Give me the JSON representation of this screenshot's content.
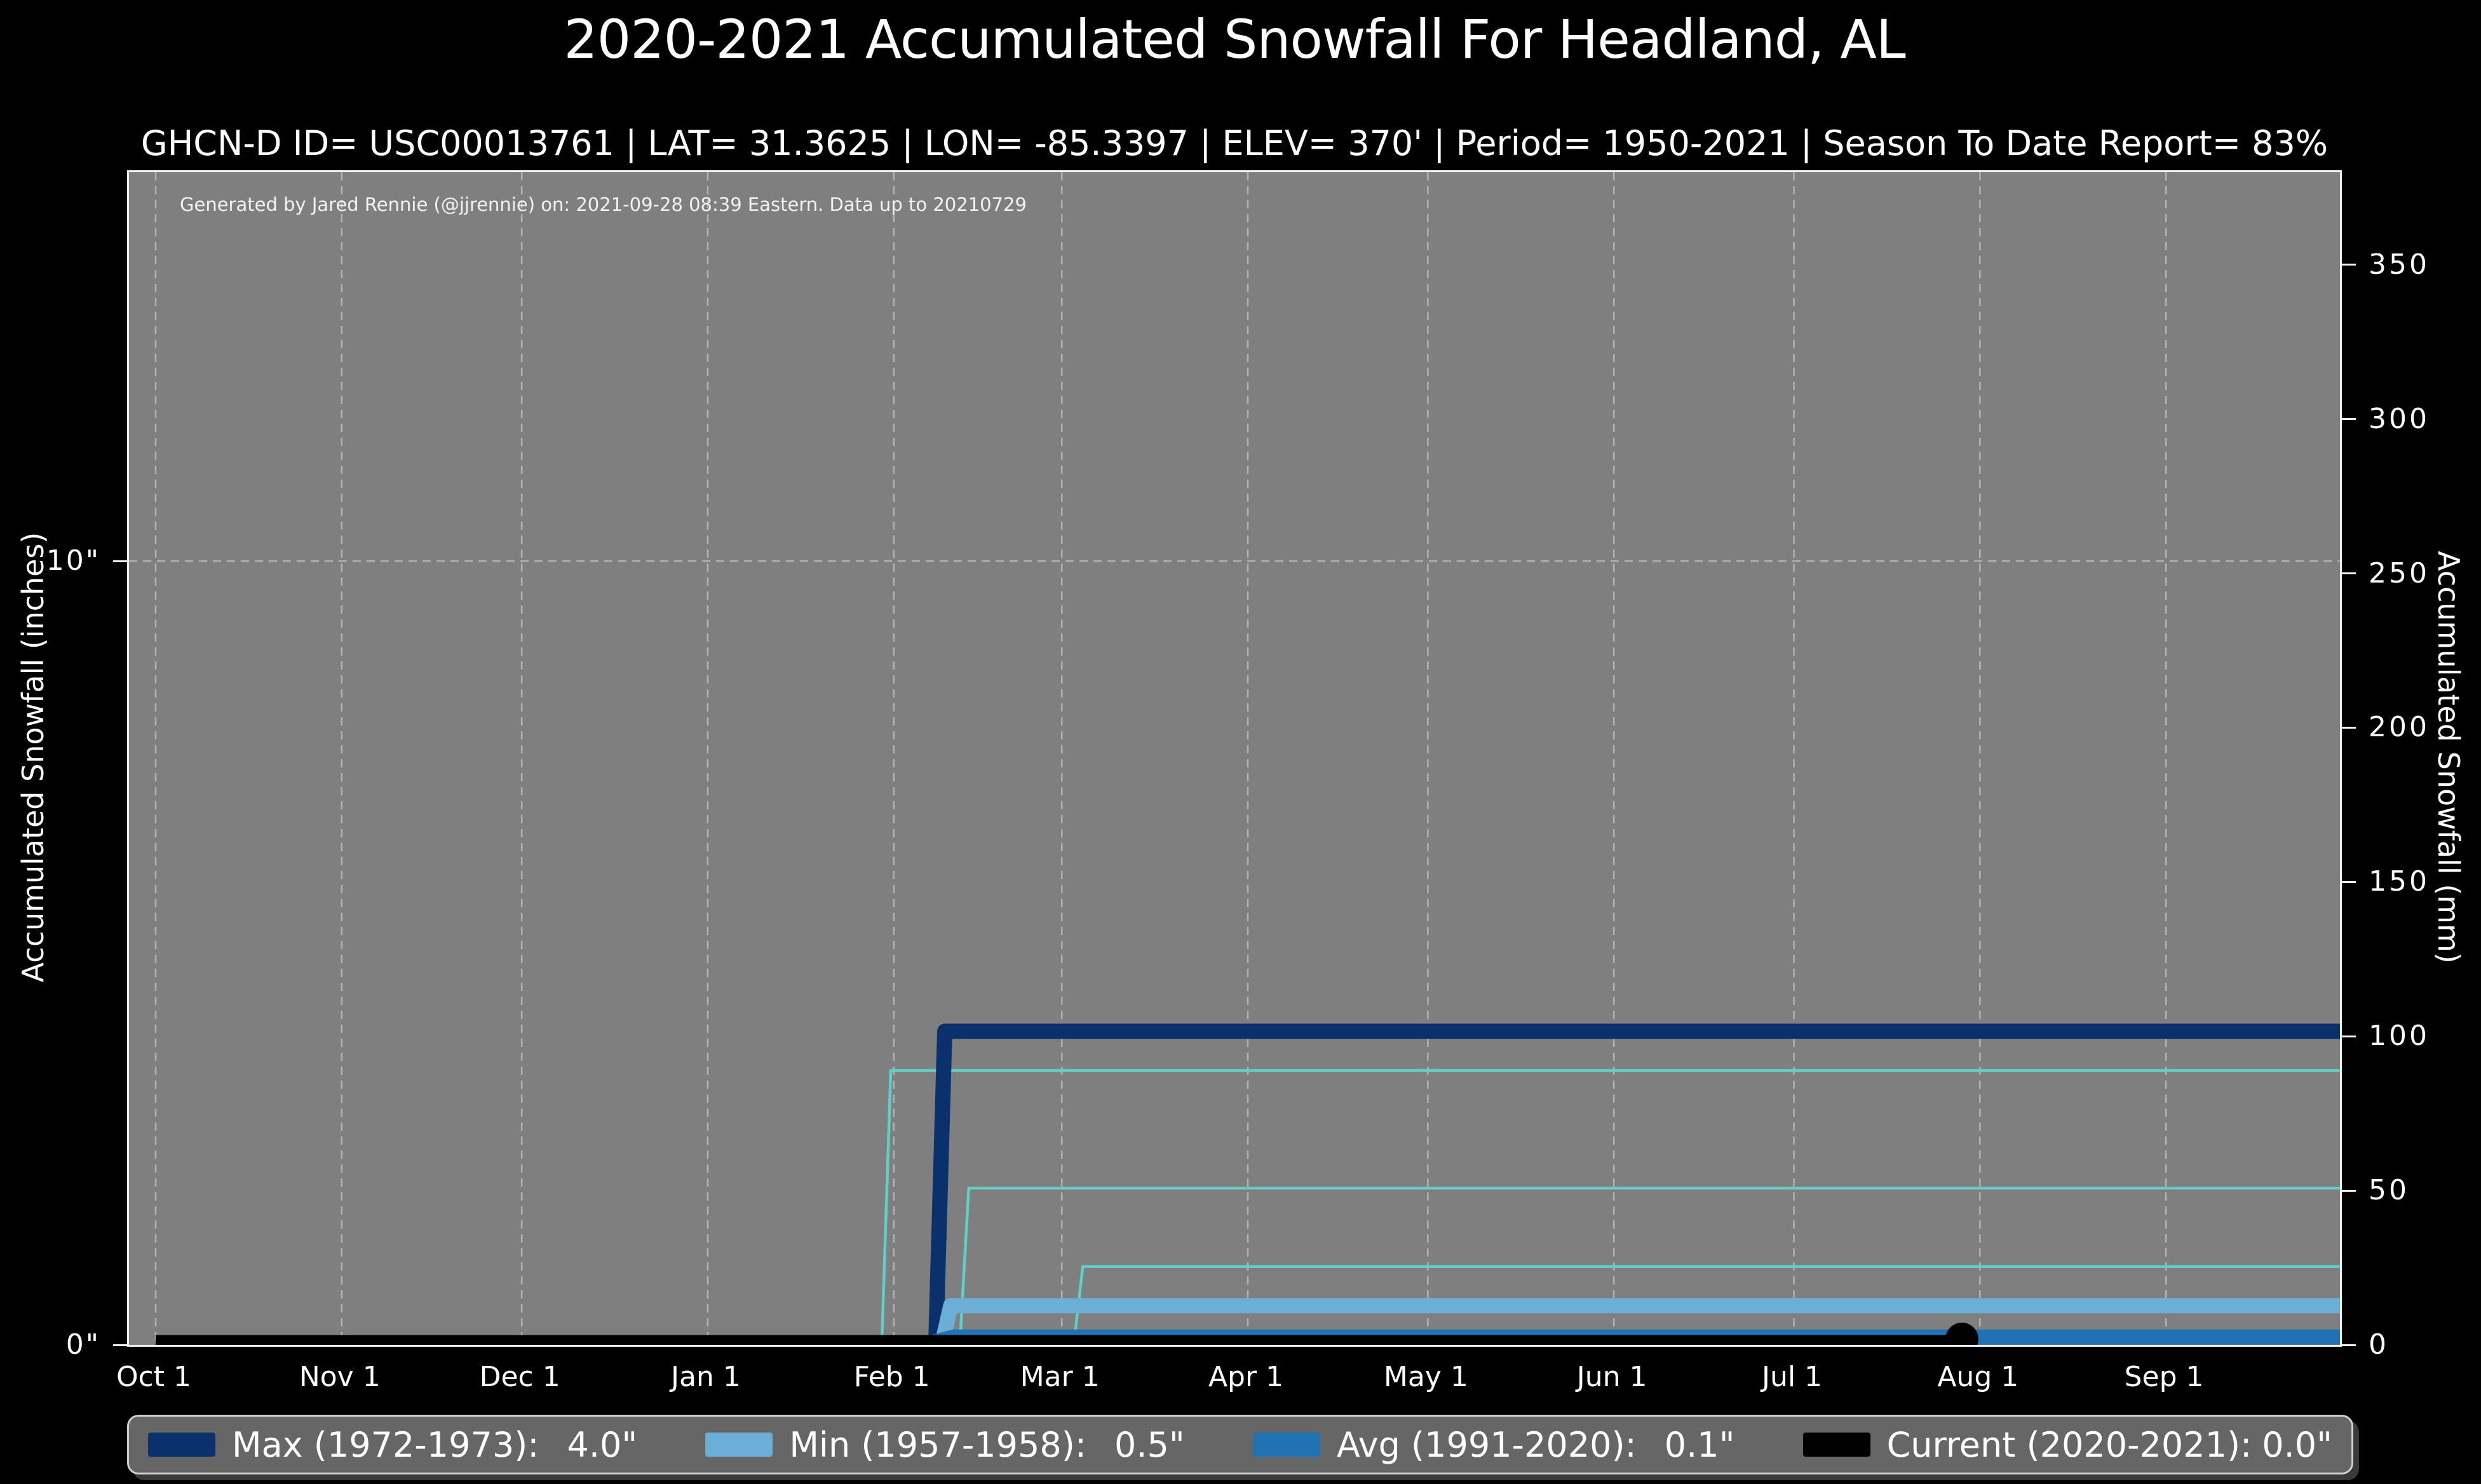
{
  "header": {
    "title": "2020-2021 Accumulated Snowfall For Headland, AL",
    "subtitle": "GHCN-D ID= USC00013761 | LAT= 31.3625 | LON= -85.3397 | ELEV= 370' | Period= 1950-2021 | Season To Date Report= 83%"
  },
  "plot": {
    "watermark": "Generated by Jared Rennie (@jjrennie) on: 2021-09-28 08:39 Eastern. Data up to 20210729"
  },
  "axes": {
    "left_label": "Accumulated Snowfall (inches)",
    "right_label": "Accumulated Snowfall (mm)",
    "x_ticks": [
      {
        "label": "Oct 1",
        "day": 0
      },
      {
        "label": "Nov 1",
        "day": 31
      },
      {
        "label": "Dec 1",
        "day": 61
      },
      {
        "label": "Jan 1",
        "day": 92
      },
      {
        "label": "Feb 1",
        "day": 123
      },
      {
        "label": "Mar 1",
        "day": 151
      },
      {
        "label": "Apr 1",
        "day": 182
      },
      {
        "label": "May 1",
        "day": 212
      },
      {
        "label": "Jun 1",
        "day": 243
      },
      {
        "label": "Jul 1",
        "day": 273
      },
      {
        "label": "Aug 1",
        "day": 304
      },
      {
        "label": "Sep 1",
        "day": 335
      }
    ],
    "left_ticks": [
      {
        "label": "0\"",
        "inches": 0
      },
      {
        "label": "10\"",
        "inches": 10
      }
    ],
    "right_ticks_mm": [
      0,
      50,
      100,
      150,
      200,
      250,
      300,
      350
    ],
    "x_domain_days": [
      0,
      364
    ],
    "y_domain_mm": [
      0,
      380
    ]
  },
  "colors": {
    "figure_background": "#000000",
    "plot_background": "#7f7f7f",
    "gridline": "#b8b8b8",
    "spine": "#f2f2f2",
    "max_line": "#0a316b",
    "min_line": "#6baed6",
    "avg_line": "#2171b5",
    "current_line": "#000000",
    "other_season_line": "#62cfc7",
    "text": "#ffffff",
    "legend_background": "#666667"
  },
  "chart_data": {
    "type": "line",
    "title": "2020-2021 Accumulated Snowfall For Headland, AL",
    "xlabel": "",
    "ylabel_left": "Accumulated Snowfall (inches)",
    "ylabel_right": "Accumulated Snowfall (mm)",
    "x_tick_labels": [
      "Oct 1",
      "Nov 1",
      "Dec 1",
      "Jan 1",
      "Feb 1",
      "Mar 1",
      "Apr 1",
      "May 1",
      "Jun 1",
      "Jul 1",
      "Aug 1",
      "Sep 1"
    ],
    "x_domain_days_since_oct1": [
      0,
      364
    ],
    "ylim_mm": [
      0,
      380
    ],
    "ylim_inches": [
      0,
      14.96
    ],
    "grid": {
      "vertical_at_month_starts": true,
      "horizontal_at_inches": [
        10
      ],
      "style": "dashed"
    },
    "series": [
      {
        "name": "Max (1972-1973)",
        "season_total_inches": 4.0,
        "color": "#0a316b",
        "style": "thick",
        "points": [
          {
            "day": 0,
            "in": 0
          },
          {
            "day": 130,
            "in": 0
          },
          {
            "day": 131.5,
            "in": 4.0
          },
          {
            "day": 364,
            "in": 4.0
          }
        ]
      },
      {
        "name": "Min (1957-1958)",
        "season_total_inches": 0.5,
        "color": "#6baed6",
        "style": "thick",
        "points": [
          {
            "day": 0,
            "in": 0
          },
          {
            "day": 131,
            "in": 0
          },
          {
            "day": 132.5,
            "in": 0.5
          },
          {
            "day": 364,
            "in": 0.5
          }
        ]
      },
      {
        "name": "Avg (1991-2020)",
        "season_total_inches": 0.1,
        "color": "#2171b5",
        "style": "thick",
        "points": [
          {
            "day": 0,
            "in": 0.02
          },
          {
            "day": 129,
            "in": 0.02
          },
          {
            "day": 133,
            "in": 0.1
          },
          {
            "day": 364,
            "in": 0.1
          }
        ]
      },
      {
        "name": "Current (2020-2021)",
        "season_total_inches": 0.0,
        "color": "#000000",
        "style": "medium",
        "points": [
          {
            "day": 0,
            "in": 0
          },
          {
            "day": 301,
            "in": 0
          }
        ],
        "end_marker": {
          "day": 301,
          "shape": "circle"
        }
      }
    ],
    "other_seasons": [
      {
        "name": "season-trace-3.5in",
        "color": "#62cfc7",
        "points": [
          {
            "day": 0,
            "in": 0
          },
          {
            "day": 121,
            "in": 0
          },
          {
            "day": 122.5,
            "in": 3.5
          },
          {
            "day": 364,
            "in": 3.5
          }
        ]
      },
      {
        "name": "season-trace-2.0in",
        "color": "#62cfc7",
        "points": [
          {
            "day": 0,
            "in": 0
          },
          {
            "day": 134,
            "in": 0
          },
          {
            "day": 135.5,
            "in": 2.0
          },
          {
            "day": 364,
            "in": 2.0
          }
        ]
      },
      {
        "name": "season-trace-1.0in",
        "color": "#62cfc7",
        "points": [
          {
            "day": 0,
            "in": 0
          },
          {
            "day": 153,
            "in": 0
          },
          {
            "day": 154.5,
            "in": 1.0
          },
          {
            "day": 364,
            "in": 1.0
          }
        ]
      }
    ]
  },
  "legend": {
    "entries": [
      {
        "id": "max",
        "label": "Max (1972-1973):",
        "value": "4.0\"",
        "color": "#0a316b"
      },
      {
        "id": "min",
        "label": "Min (1957-1958):",
        "value": "0.5\"",
        "color": "#6baed6"
      },
      {
        "id": "avg",
        "label": "Avg (1991-2020):",
        "value": "0.1\"",
        "color": "#2171b5"
      },
      {
        "id": "current",
        "label": "Current (2020-2021):",
        "value": "0.0\"",
        "color": "#000000"
      }
    ]
  }
}
